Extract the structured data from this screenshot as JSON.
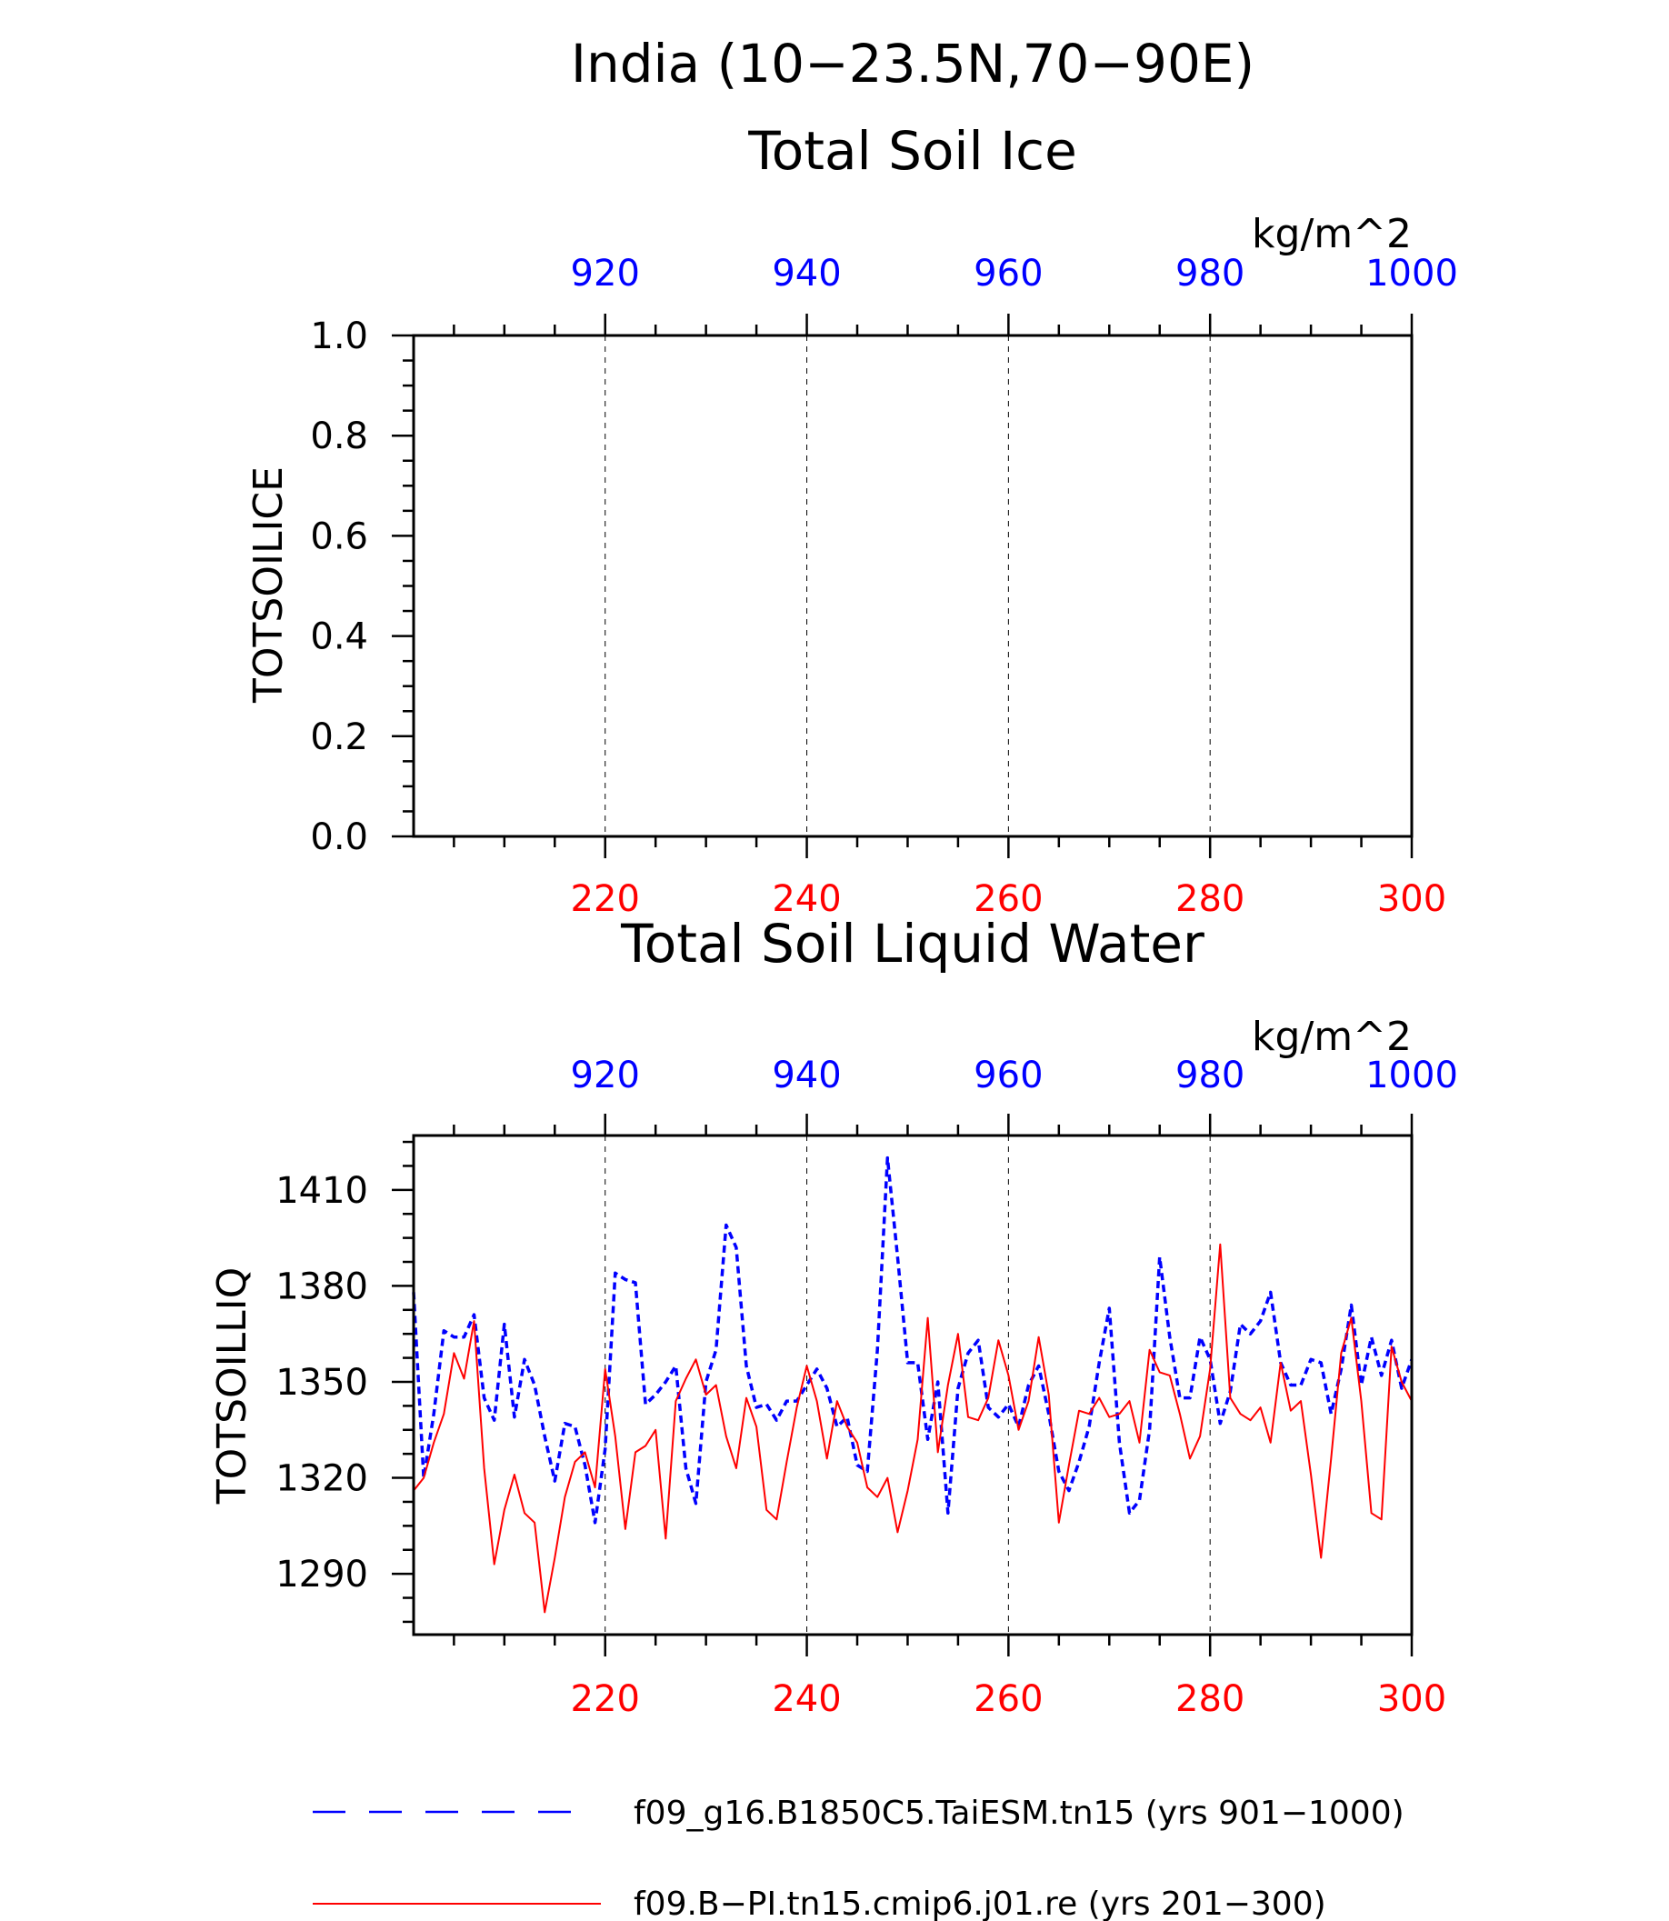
{
  "figure": {
    "title": "India (10−23.5N,70−90E)"
  },
  "chart_data": [
    {
      "type": "line",
      "title": "Total Soil Ice",
      "ylabel": "TOTSOILICE",
      "units": "kg/m^2",
      "ylim": [
        0.0,
        1.0
      ],
      "y_ticks": [
        "0.0",
        "0.2",
        "0.4",
        "0.6",
        "0.8",
        "1.0"
      ],
      "x_bottom": {
        "range": [
          201,
          300
        ],
        "ticks": [
          "220",
          "240",
          "260",
          "280",
          "300"
        ],
        "color": "#ff0000"
      },
      "x_top": {
        "range": [
          901,
          1000
        ],
        "ticks": [
          "920",
          "940",
          "960",
          "980",
          "1000"
        ],
        "color": "#0000ff"
      },
      "grid_x": true,
      "series": []
    },
    {
      "type": "line",
      "title": "Total Soil Liquid Water",
      "ylabel": "TOTSOILLIQ",
      "units": "kg/m^2",
      "ylim": [
        1271,
        1427
      ],
      "y_ticks": [
        "1290",
        "1320",
        "1350",
        "1380",
        "1410"
      ],
      "x_bottom": {
        "range": [
          201,
          300
        ],
        "ticks": [
          "220",
          "240",
          "260",
          "280",
          "300"
        ],
        "color": "#ff0000"
      },
      "x_top": {
        "range": [
          901,
          1000
        ],
        "ticks": [
          "920",
          "940",
          "960",
          "980",
          "1000"
        ],
        "color": "#0000ff"
      },
      "grid_x": true,
      "series": [
        {
          "name": "f09_g16.B1850C5.TaiESM.tn15 (yrs 901−1000)",
          "color": "#0000ff",
          "style": "dashed",
          "axis": "top",
          "x_start": 901,
          "values": [
            1378,
            1320,
            1340,
            1366,
            1364,
            1364,
            1371,
            1345,
            1338,
            1368,
            1339,
            1357,
            1349,
            1333,
            1319,
            1337,
            1336,
            1324,
            1306,
            1329,
            1384,
            1382,
            1381,
            1343,
            1346,
            1350,
            1355,
            1323,
            1312,
            1350,
            1360,
            1399,
            1392,
            1355,
            1342,
            1343,
            1338,
            1344,
            1344,
            1349,
            1354,
            1348,
            1336,
            1339,
            1324,
            1322,
            1360,
            1420,
            1389,
            1356,
            1356,
            1332,
            1350,
            1309,
            1348,
            1359,
            1363,
            1342,
            1339,
            1343,
            1336,
            1349,
            1355,
            1340,
            1322,
            1316,
            1325,
            1336,
            1356,
            1373,
            1331,
            1309,
            1313,
            1335,
            1389,
            1364,
            1345,
            1345,
            1364,
            1357,
            1337,
            1347,
            1368,
            1365,
            1369,
            1378,
            1356,
            1349,
            1349,
            1357,
            1356,
            1340,
            1354,
            1374,
            1349,
            1364,
            1352,
            1363,
            1348,
            1357
          ]
        },
        {
          "name": "f09.B−PI.tn15.cmip6.j01.re (yrs 201−300)",
          "color": "#ff0000",
          "style": "solid",
          "axis": "bottom",
          "x_start": 201,
          "values": [
            1316,
            1320,
            1331,
            1340,
            1359,
            1351,
            1369,
            1323,
            1293,
            1310,
            1321,
            1309,
            1306,
            1278,
            1295,
            1314,
            1325,
            1328,
            1317,
            1354,
            1333,
            1304,
            1328,
            1330,
            1335,
            1301,
            1344,
            1351,
            1357,
            1346,
            1349,
            1333,
            1323,
            1345,
            1336,
            1310,
            1307,
            1325,
            1342,
            1355,
            1344,
            1326,
            1344,
            1336,
            1331,
            1317,
            1314,
            1320,
            1303,
            1316,
            1332,
            1370,
            1328,
            1349,
            1365,
            1339,
            1338,
            1345,
            1363,
            1352,
            1335,
            1344,
            1364,
            1346,
            1306,
            1324,
            1341,
            1340,
            1345,
            1339,
            1340,
            1344,
            1331,
            1360,
            1353,
            1352,
            1340,
            1326,
            1333,
            1354,
            1393,
            1345,
            1340,
            1338,
            1342,
            1331,
            1356,
            1341,
            1344,
            1321,
            1295,
            1326,
            1359,
            1370,
            1344,
            1309,
            1307,
            1361,
            1350,
            1344
          ]
        }
      ]
    }
  ],
  "legend": [
    {
      "label": "f09_g16.B1850C5.TaiESM.tn15 (yrs 901−1000)",
      "color": "#0000ff",
      "style": "long-dash"
    },
    {
      "label": "f09.B−PI.tn15.cmip6.j01.re (yrs 201−300)",
      "color": "#ff0000",
      "style": "solid"
    }
  ]
}
